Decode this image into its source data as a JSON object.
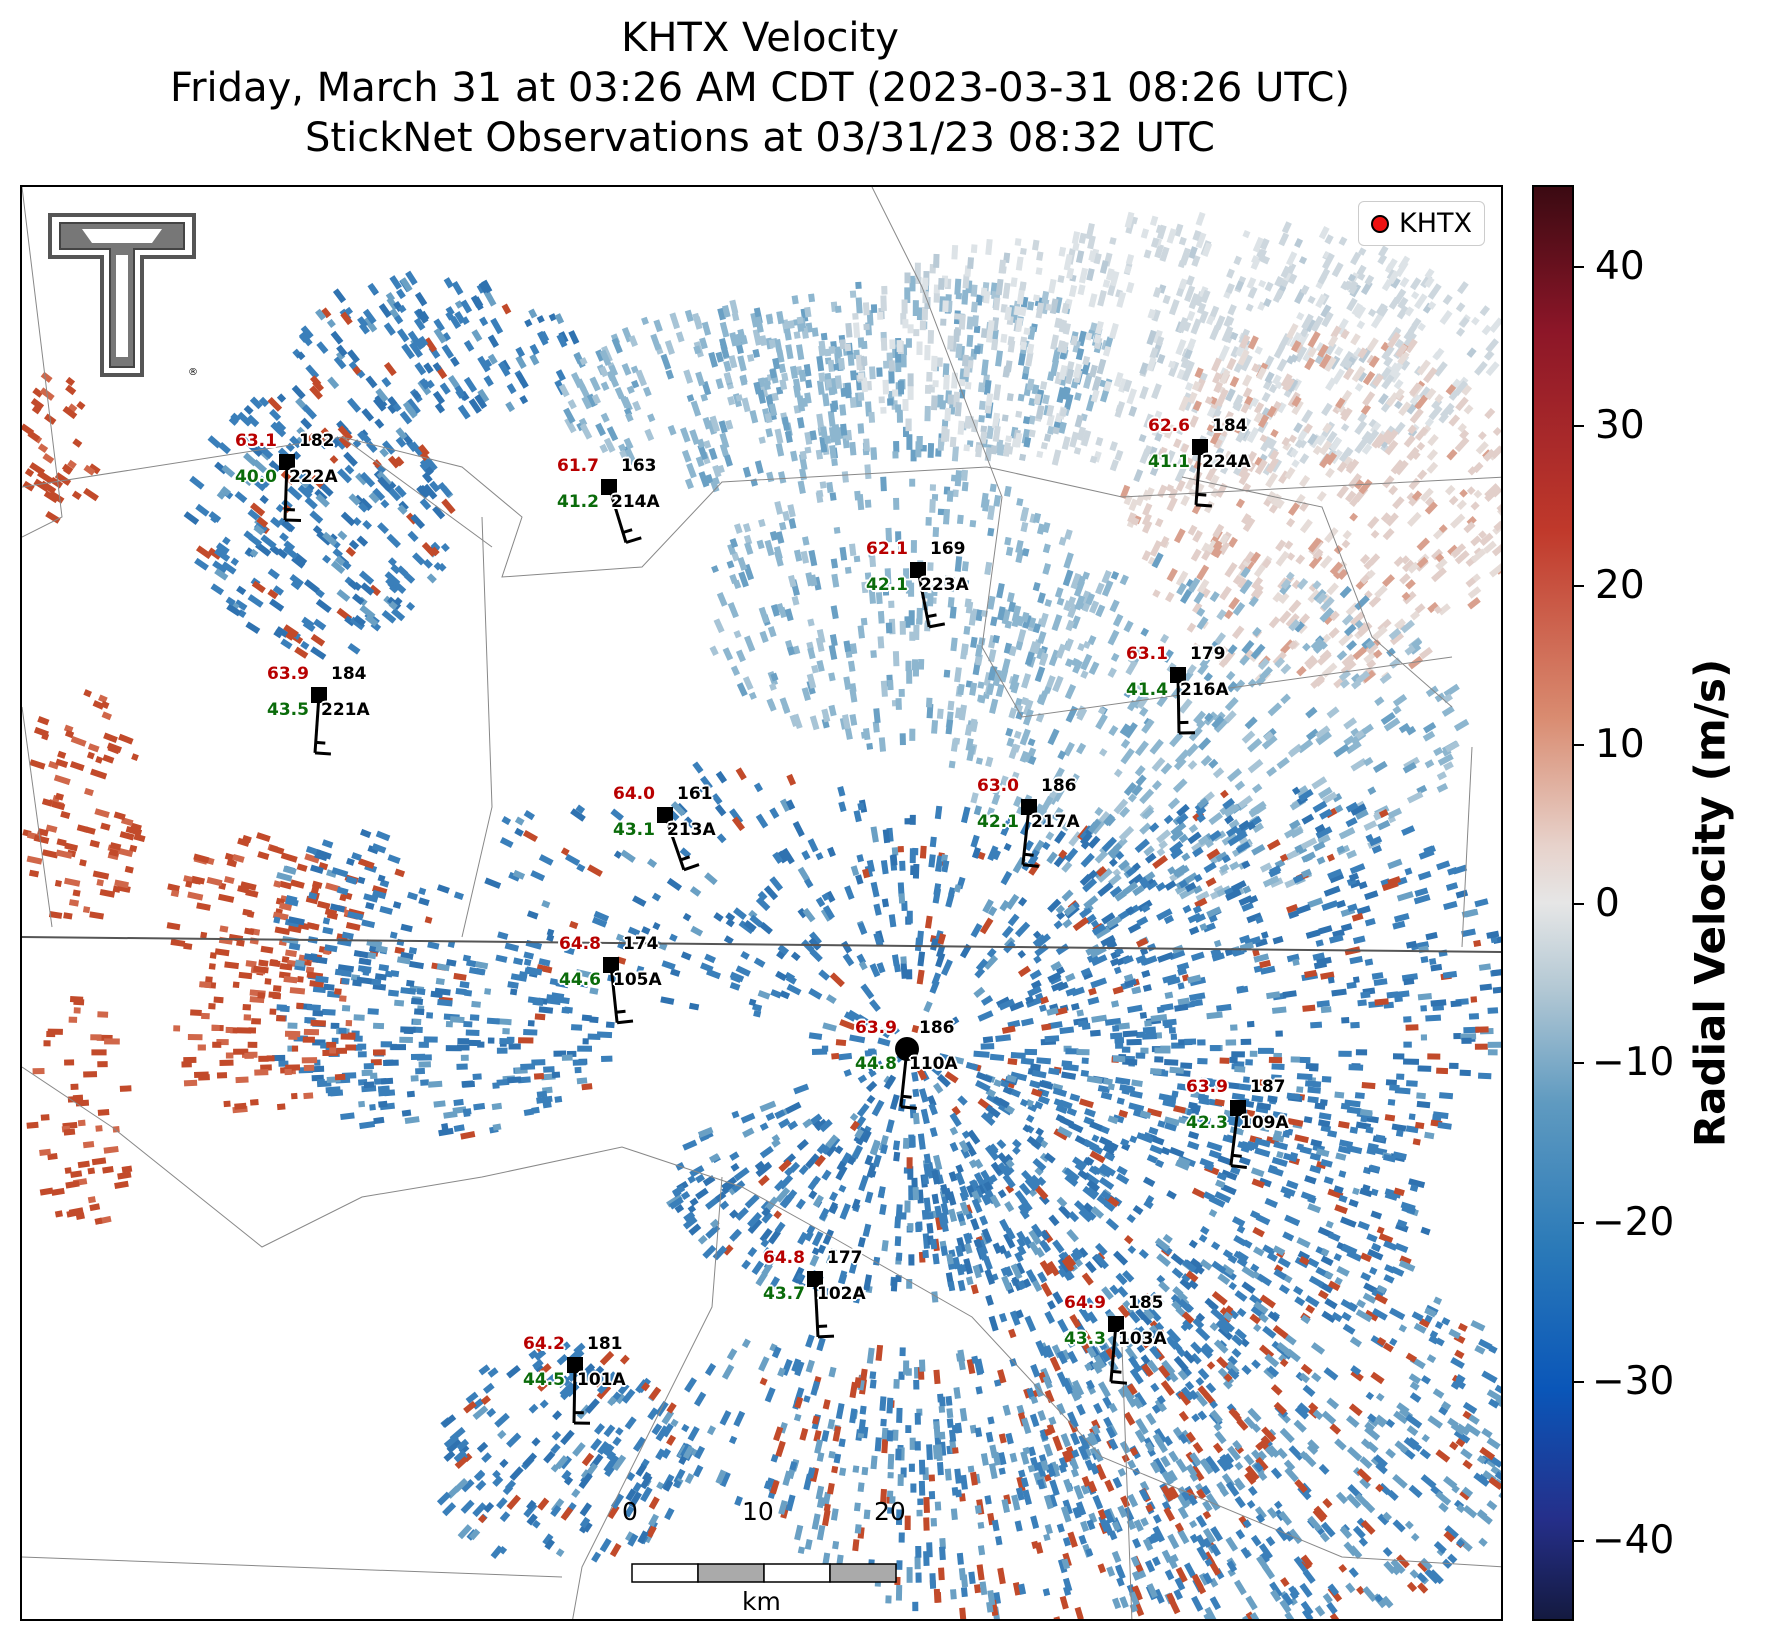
{
  "title": {
    "line1": "KHTX Velocity",
    "line2": "Friday, March 31 at 03:26 AM CDT (2023-03-31 08:26 UTC)",
    "line3": "StickNet Observations at 03/31/23 08:32 UTC"
  },
  "legend": {
    "label": "KHTX",
    "marker_color": "#ee1111"
  },
  "colorbar": {
    "label": "Radial Velocity (m/s)",
    "ticks": [
      "40",
      "30",
      "20",
      "10",
      "0",
      "−10",
      "−20",
      "−30",
      "−40"
    ],
    "range": [
      -45,
      45
    ]
  },
  "scalebar": {
    "ticks": [
      "0",
      "10",
      "20"
    ],
    "unit": "km"
  },
  "logo": {
    "name": "Texas Tech Double T",
    "mark": "®"
  },
  "colors": {
    "inbound_blue": "#3a7fba",
    "outbound_red": "#c24a2a",
    "temperature": "#b80000",
    "dewpoint": "#0a6b0a"
  },
  "stations": [
    {
      "id": "222A",
      "temp": "63.1",
      "dew": "40.0",
      "dir": "182"
    },
    {
      "id": "214A",
      "temp": "61.7",
      "dew": "41.2",
      "dir": "163"
    },
    {
      "id": "223A",
      "temp": "62.1",
      "dew": "42.1",
      "dir": "169"
    },
    {
      "id": "224A",
      "temp": "62.6",
      "dew": "41.1",
      "dir": "184"
    },
    {
      "id": "221A",
      "temp": "63.9",
      "dew": "43.5",
      "dir": "184"
    },
    {
      "id": "216A",
      "temp": "63.1",
      "dew": "41.4",
      "dir": "179"
    },
    {
      "id": "213A",
      "temp": "64.0",
      "dew": "43.1",
      "dir": "161"
    },
    {
      "id": "217A",
      "temp": "63.0",
      "dew": "42.1",
      "dir": "186"
    },
    {
      "id": "105A",
      "temp": "64.8",
      "dew": "44.6",
      "dir": "174"
    },
    {
      "id": "110A",
      "temp": "63.9",
      "dew": "44.8",
      "dir": "186"
    },
    {
      "id": "109A",
      "temp": "63.9",
      "dew": "42.3",
      "dir": "187"
    },
    {
      "id": "102A",
      "temp": "64.8",
      "dew": "43.7",
      "dir": "177"
    },
    {
      "id": "103A",
      "temp": "64.9",
      "dew": "43.3",
      "dir": "185"
    },
    {
      "id": "101A",
      "temp": "64.2",
      "dew": "44.5",
      "dir": "181"
    }
  ]
}
